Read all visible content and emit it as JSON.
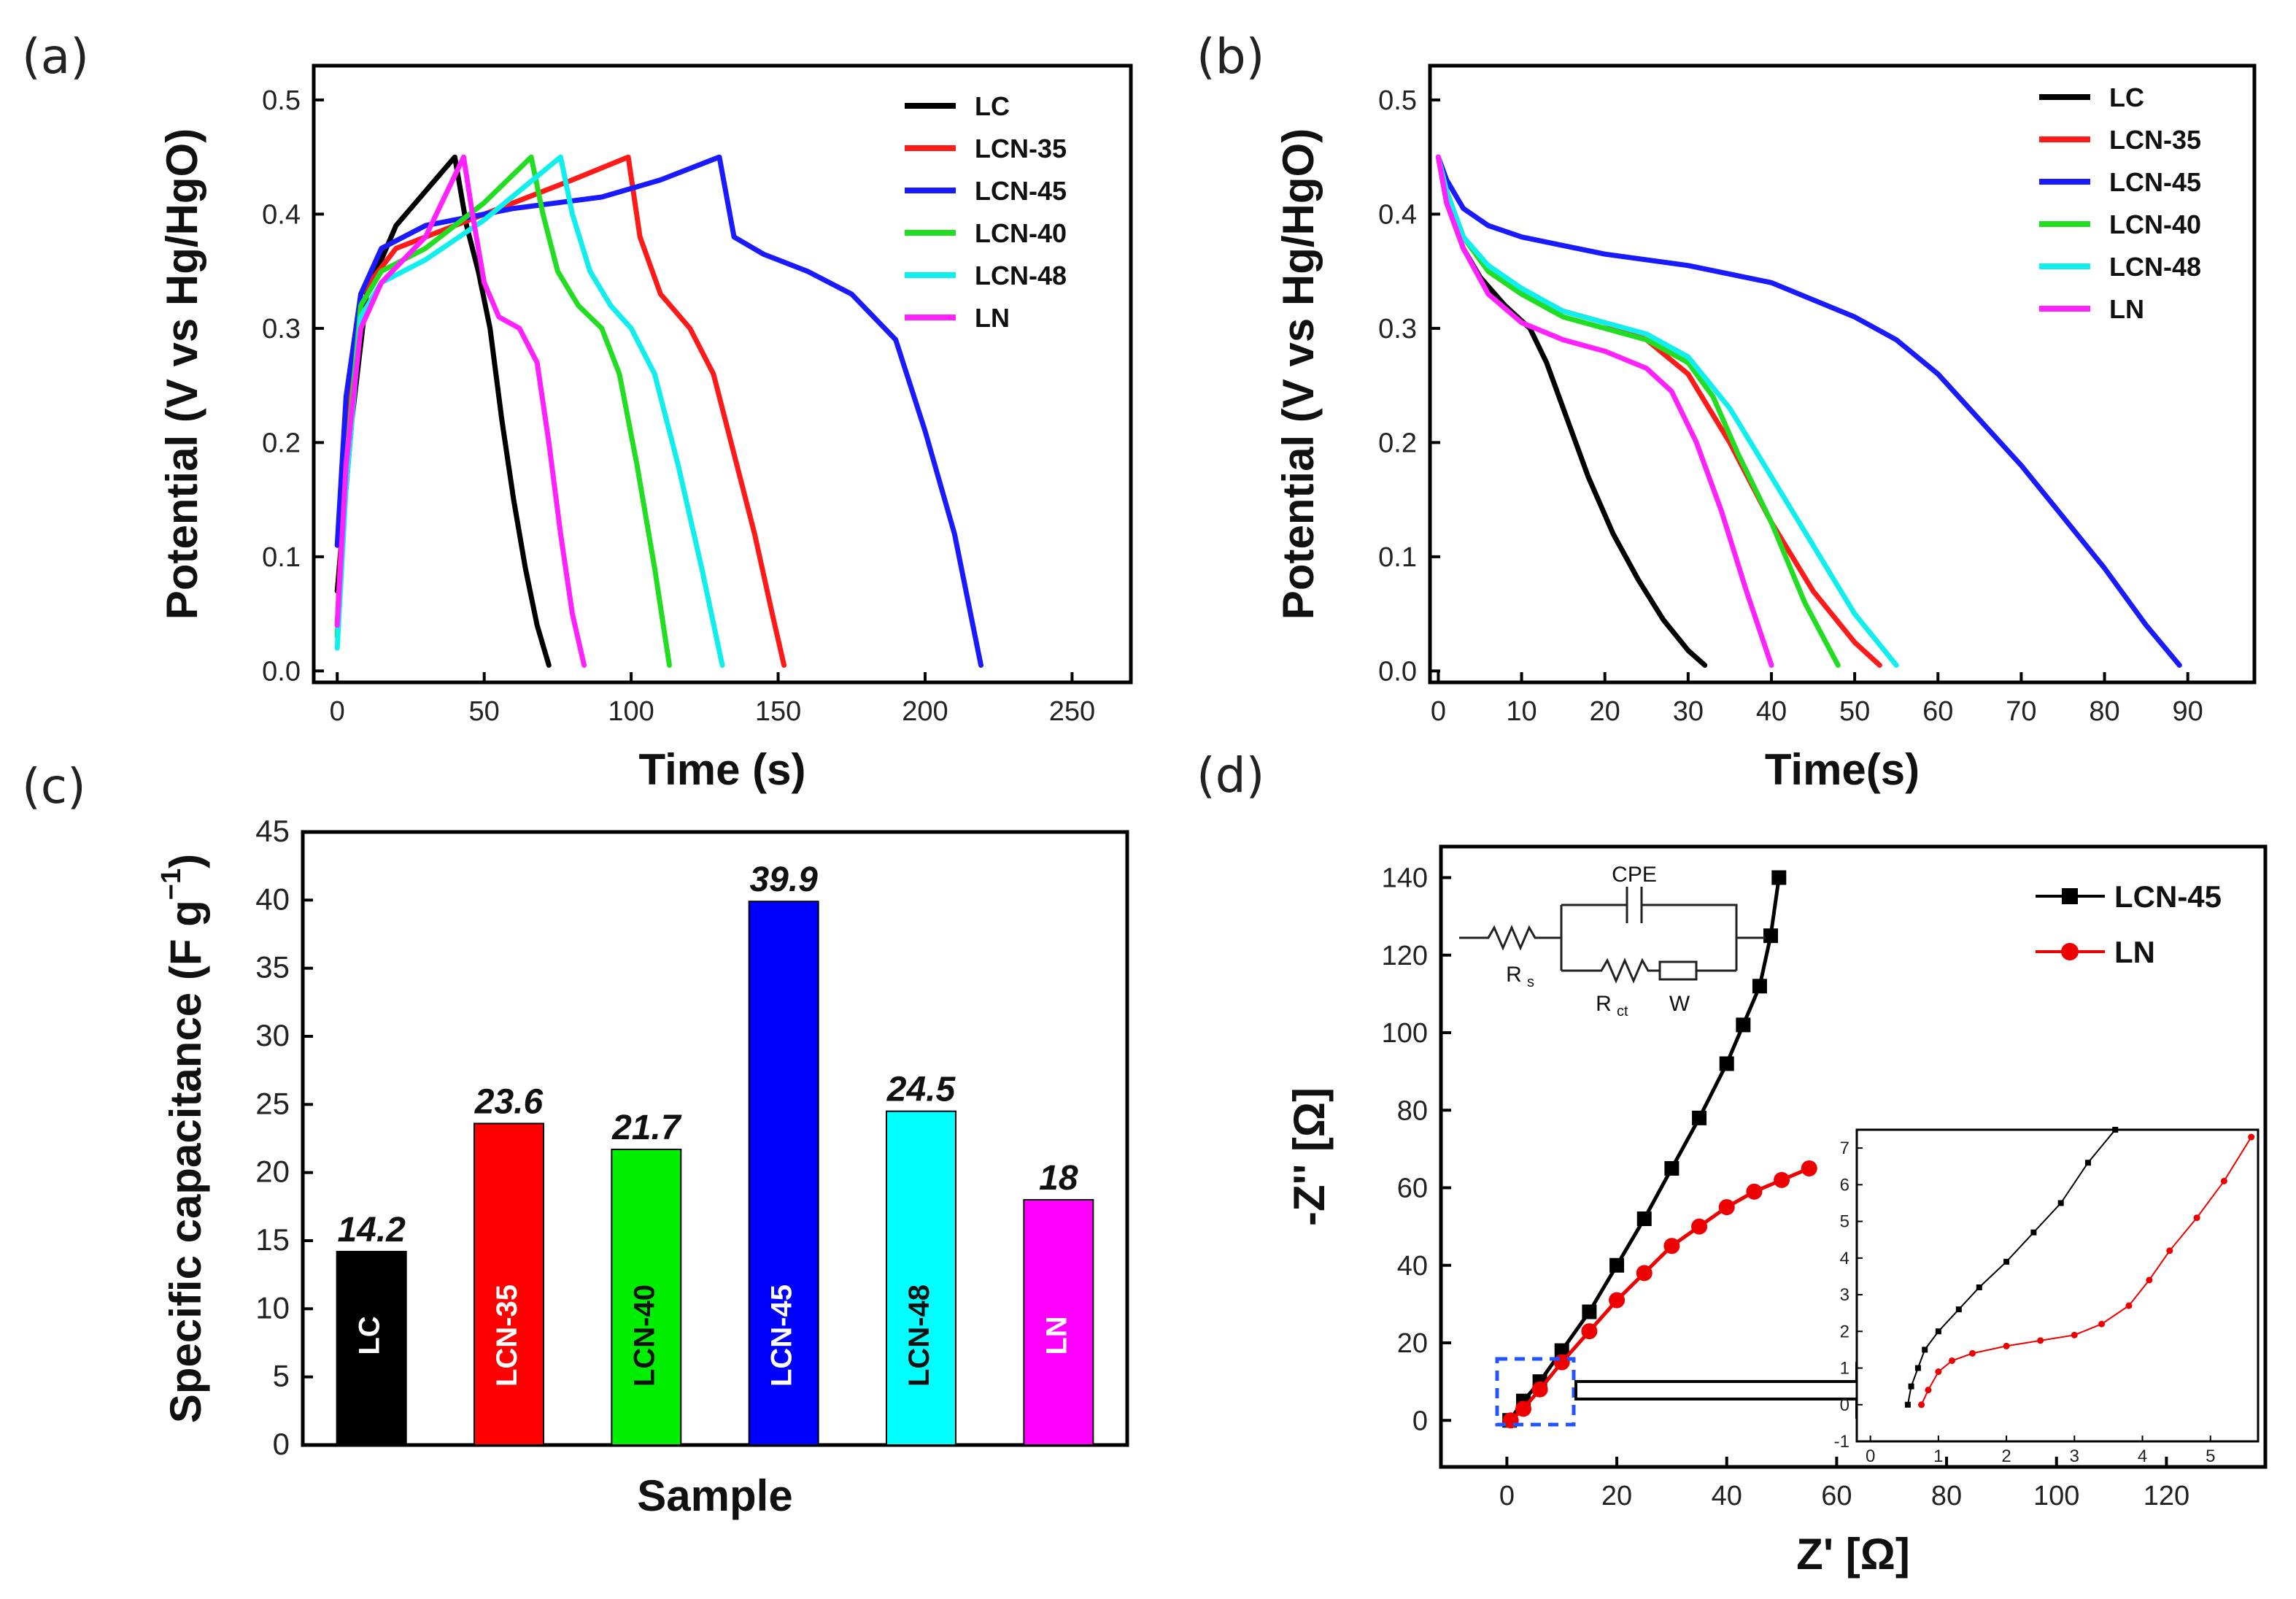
{
  "panels": {
    "a": "(a)",
    "b": "(b)",
    "c": "(c)",
    "d": "(d)"
  },
  "colors": {
    "LC": "#000000",
    "LCN-35": "#ff1a1a",
    "LCN-45": "#1a1aff",
    "LCN-40": "#22dd22",
    "LCN-48": "#11eeee",
    "LN": "#ff22ff"
  },
  "chart_data": [
    {
      "id": "a",
      "type": "line",
      "xlabel": "Time (s)",
      "ylabel": "Potential (V vs Hg/HgO)",
      "xlim": [
        -8,
        270
      ],
      "ylim": [
        -0.01,
        0.53
      ],
      "xticks": [
        0,
        50,
        100,
        150,
        200,
        250
      ],
      "yticks": [
        0.0,
        0.1,
        0.2,
        0.3,
        0.4,
        0.5
      ],
      "legend": [
        "LC",
        "LCN-35",
        "LCN-45",
        "LCN-40",
        "LCN-48",
        "LN"
      ],
      "series": [
        {
          "name": "LC",
          "x": [
            0,
            5,
            10,
            20,
            30,
            40,
            44,
            48,
            52,
            56,
            60,
            64,
            68,
            72
          ],
          "y": [
            0.07,
            0.22,
            0.33,
            0.39,
            0.42,
            0.45,
            0.39,
            0.35,
            0.3,
            0.22,
            0.15,
            0.09,
            0.04,
            0.005
          ]
        },
        {
          "name": "LCN-35",
          "x": [
            0,
            3,
            8,
            20,
            40,
            60,
            80,
            99,
            103,
            110,
            120,
            128,
            135,
            142,
            148,
            152
          ],
          "y": [
            0.04,
            0.2,
            0.33,
            0.37,
            0.39,
            0.41,
            0.43,
            0.45,
            0.38,
            0.33,
            0.3,
            0.26,
            0.19,
            0.12,
            0.05,
            0.005
          ]
        },
        {
          "name": "LCN-45",
          "x": [
            0,
            3,
            8,
            15,
            30,
            60,
            90,
            110,
            130,
            135,
            145,
            160,
            175,
            190,
            200,
            210,
            219
          ],
          "y": [
            0.11,
            0.24,
            0.33,
            0.37,
            0.39,
            0.405,
            0.415,
            0.43,
            0.45,
            0.38,
            0.365,
            0.35,
            0.33,
            0.29,
            0.21,
            0.12,
            0.005
          ]
        },
        {
          "name": "LCN-40",
          "x": [
            0,
            3,
            8,
            15,
            30,
            50,
            66,
            70,
            75,
            82,
            90,
            96,
            102,
            108,
            113
          ],
          "y": [
            0.03,
            0.18,
            0.32,
            0.35,
            0.37,
            0.41,
            0.45,
            0.4,
            0.35,
            0.32,
            0.3,
            0.26,
            0.18,
            0.09,
            0.005
          ]
        },
        {
          "name": "LCN-48",
          "x": [
            0,
            3,
            8,
            15,
            30,
            50,
            76,
            80,
            86,
            93,
            100,
            108,
            116,
            124,
            131
          ],
          "y": [
            0.02,
            0.16,
            0.31,
            0.34,
            0.36,
            0.395,
            0.45,
            0.4,
            0.35,
            0.32,
            0.3,
            0.26,
            0.18,
            0.09,
            0.005
          ]
        },
        {
          "name": "LN",
          "x": [
            0,
            3,
            8,
            15,
            30,
            43,
            46,
            50,
            55,
            62,
            68,
            72,
            76,
            80,
            84
          ],
          "y": [
            0.04,
            0.18,
            0.3,
            0.34,
            0.38,
            0.45,
            0.4,
            0.34,
            0.31,
            0.3,
            0.27,
            0.2,
            0.12,
            0.05,
            0.005
          ]
        }
      ]
    },
    {
      "id": "b",
      "type": "line",
      "xlabel": "Time(s)",
      "ylabel": "Potential (V vs Hg/HgO)",
      "xlim": [
        -1,
        98
      ],
      "ylim": [
        -0.01,
        0.53
      ],
      "xticks": [
        0,
        10,
        20,
        30,
        40,
        50,
        60,
        70,
        80,
        90
      ],
      "yticks": [
        0.0,
        0.1,
        0.2,
        0.3,
        0.4,
        0.5
      ],
      "legend": [
        "LC",
        "LCN-35",
        "LCN-45",
        "LCN-40",
        "LCN-48",
        "LN"
      ],
      "series": [
        {
          "name": "LC",
          "x": [
            0,
            1,
            3,
            5,
            8,
            11,
            13,
            15,
            18,
            21,
            24,
            27,
            30,
            32
          ],
          "y": [
            0.45,
            0.41,
            0.37,
            0.345,
            0.32,
            0.3,
            0.27,
            0.23,
            0.17,
            0.12,
            0.08,
            0.045,
            0.018,
            0.005
          ]
        },
        {
          "name": "LCN-35",
          "x": [
            0,
            1,
            3,
            6,
            10,
            15,
            20,
            25,
            30,
            35,
            40,
            45,
            50,
            53
          ],
          "y": [
            0.45,
            0.42,
            0.38,
            0.35,
            0.33,
            0.315,
            0.305,
            0.29,
            0.26,
            0.2,
            0.13,
            0.07,
            0.025,
            0.005
          ]
        },
        {
          "name": "LCN-45",
          "x": [
            0,
            1,
            3,
            6,
            10,
            20,
            30,
            40,
            50,
            55,
            60,
            65,
            70,
            75,
            80,
            85,
            89
          ],
          "y": [
            0.45,
            0.43,
            0.405,
            0.39,
            0.38,
            0.365,
            0.355,
            0.34,
            0.31,
            0.29,
            0.26,
            0.22,
            0.18,
            0.135,
            0.09,
            0.04,
            0.005
          ]
        },
        {
          "name": "LCN-40",
          "x": [
            0,
            1,
            3,
            6,
            10,
            15,
            20,
            25,
            30,
            33,
            36,
            40,
            44,
            48
          ],
          "y": [
            0.45,
            0.42,
            0.38,
            0.35,
            0.33,
            0.31,
            0.3,
            0.29,
            0.27,
            0.24,
            0.19,
            0.13,
            0.06,
            0.005
          ]
        },
        {
          "name": "LCN-48",
          "x": [
            0,
            1,
            3,
            6,
            10,
            15,
            20,
            25,
            30,
            35,
            40,
            45,
            50,
            55
          ],
          "y": [
            0.45,
            0.42,
            0.38,
            0.355,
            0.335,
            0.315,
            0.305,
            0.295,
            0.275,
            0.23,
            0.17,
            0.11,
            0.05,
            0.005
          ]
        },
        {
          "name": "LN",
          "x": [
            0,
            1,
            3,
            6,
            10,
            15,
            20,
            25,
            28,
            31,
            34,
            37,
            40
          ],
          "y": [
            0.45,
            0.41,
            0.37,
            0.33,
            0.305,
            0.29,
            0.28,
            0.265,
            0.245,
            0.2,
            0.14,
            0.07,
            0.005
          ]
        }
      ]
    },
    {
      "id": "c",
      "type": "bar",
      "xlabel": "Sample",
      "ylabel": "Specific capacitance (F g",
      "ylabel_sup": "−1",
      "ylabel_end": ")",
      "ylim": [
        0,
        45
      ],
      "yticks": [
        0,
        5,
        10,
        15,
        20,
        25,
        30,
        35,
        40,
        45
      ],
      "categories": [
        "LC",
        "LCN-35",
        "LCN-40",
        "LCN-45",
        "LCN-48",
        "LN"
      ],
      "values": [
        14.2,
        23.6,
        21.7,
        39.9,
        24.5,
        18
      ],
      "value_labels": [
        "14.2",
        "23.6",
        "21.7",
        "39.9",
        "24.5",
        "18"
      ],
      "bar_colors": [
        "#000000",
        "#ff0000",
        "#00ee00",
        "#0000ff",
        "#00ffff",
        "#ff00ff"
      ],
      "label_colors": [
        "#ffffff",
        "#ffffff",
        "#111111",
        "#ffffff",
        "#111111",
        "#ffffff"
      ]
    },
    {
      "id": "d",
      "type": "scatter",
      "xlabel": "Z' [Ω]",
      "ylabel": "-Z'' [Ω]",
      "xlim": [
        -12,
        138
      ],
      "ylim": [
        -12,
        148
      ],
      "xticks": [
        0,
        20,
        40,
        60,
        80,
        100,
        120
      ],
      "yticks": [
        0,
        20,
        40,
        60,
        80,
        100,
        120,
        140
      ],
      "legend": [
        "LCN-45",
        "LN"
      ],
      "series": [
        {
          "name": "LCN-45",
          "marker": "square",
          "color": "#000000",
          "x": [
            0.5,
            3,
            6,
            10,
            15,
            20,
            25,
            30,
            35,
            40,
            43,
            46,
            48,
            49.5
          ],
          "y": [
            0,
            5,
            10,
            18,
            28,
            40,
            52,
            65,
            78,
            92,
            102,
            112,
            125,
            140
          ]
        },
        {
          "name": "LN",
          "marker": "circle",
          "color": "#ee0000",
          "x": [
            0.7,
            3,
            6,
            10,
            15,
            20,
            25,
            30,
            35,
            40,
            45,
            50,
            55
          ],
          "y": [
            0,
            3,
            8,
            15,
            23,
            31,
            38,
            45,
            50,
            55,
            59,
            62,
            65
          ]
        }
      ],
      "circuit": {
        "labels": [
          "CPE",
          "R",
          "s",
          "R",
          "ct",
          "W"
        ]
      },
      "inset": {
        "xlim": [
          -0.2,
          5.7
        ],
        "ylim": [
          -1,
          7.5
        ],
        "xticks": [
          0,
          1,
          2,
          3,
          4,
          5
        ],
        "yticks": [
          -1,
          0,
          1,
          2,
          3,
          4,
          5,
          6,
          7
        ],
        "series": [
          {
            "name": "LCN-45",
            "x": [
              0.55,
              0.6,
              0.7,
              0.8,
              1.0,
              1.3,
              1.6,
              2.0,
              2.4,
              2.8,
              3.2,
              3.6
            ],
            "y": [
              0.0,
              0.5,
              1.0,
              1.5,
              2.0,
              2.6,
              3.2,
              3.9,
              4.7,
              5.5,
              6.6,
              7.5
            ]
          },
          {
            "name": "LN",
            "x": [
              0.75,
              0.85,
              1.0,
              1.2,
              1.5,
              2.0,
              2.5,
              3.0,
              3.4,
              3.8,
              4.1,
              4.4,
              4.8,
              5.2,
              5.6
            ],
            "y": [
              0.0,
              0.4,
              0.9,
              1.2,
              1.4,
              1.6,
              1.75,
              1.9,
              2.2,
              2.7,
              3.4,
              4.2,
              5.1,
              6.1,
              7.3
            ]
          }
        ]
      }
    }
  ]
}
